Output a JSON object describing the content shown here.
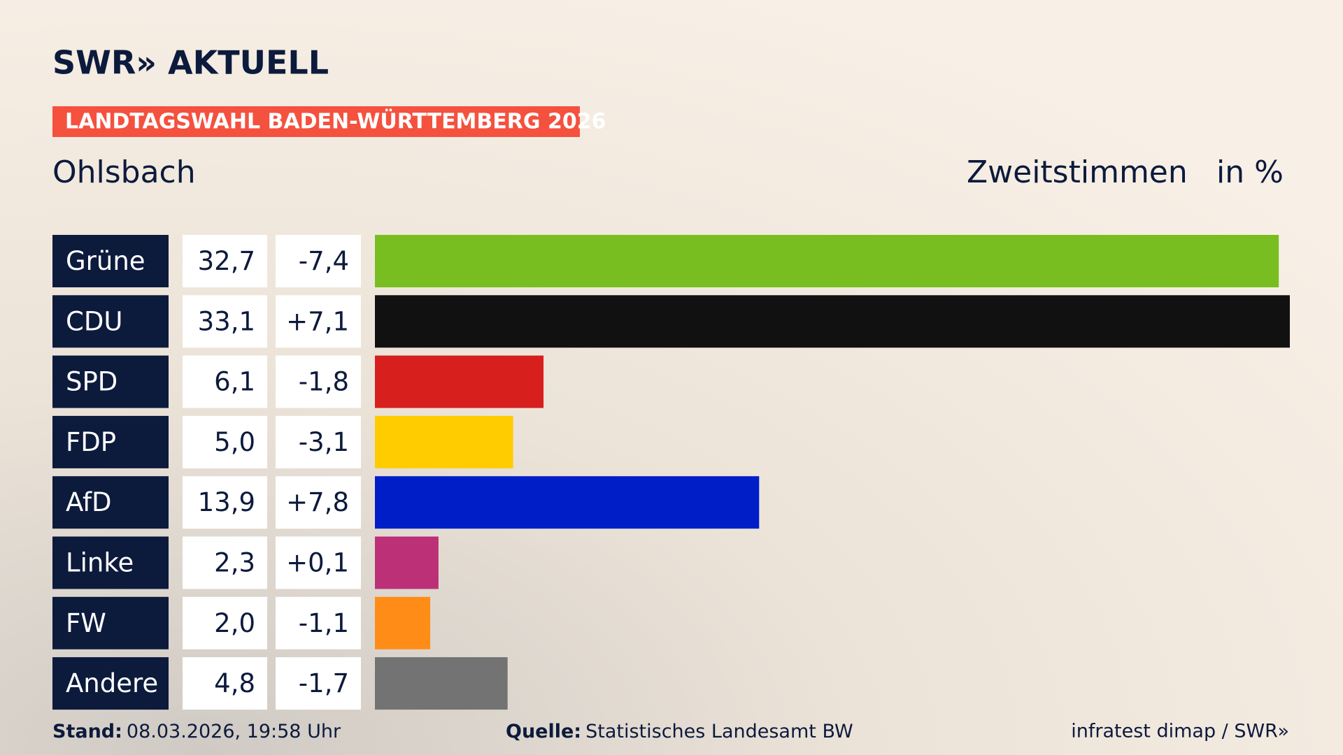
{
  "logo": "SWR» AKTUELL",
  "badge": "LANDTAGSWAHL BADEN-WÜRTTEMBERG 2026",
  "chart_data": {
    "type": "bar",
    "title": "Ohlsbach",
    "subtitle": "Zweitstimmen",
    "unit": "in %",
    "categories": [
      "Grüne",
      "CDU",
      "SPD",
      "FDP",
      "AfD",
      "Linke",
      "FW",
      "Andere"
    ],
    "values": [
      32.7,
      33.1,
      6.1,
      5.0,
      13.9,
      2.3,
      2.0,
      4.8
    ],
    "value_labels": [
      "32,7",
      "33,1",
      "6,1",
      "5,0",
      "13,9",
      "2,3",
      "2,0",
      "4,8"
    ],
    "changes": [
      "-7,4",
      "+7,1",
      "-1,8",
      "-3,1",
      "+7,8",
      "+0,1",
      "-1,1",
      "-1,7"
    ],
    "colors": [
      "#78be20",
      "#111111",
      "#d71f1d",
      "#ffcc00",
      "#001ec8",
      "#bb3077",
      "#ff8c17",
      "#737373"
    ]
  },
  "footer": {
    "stand_label": "Stand:",
    "stand": "08.03.2026, 19:58 Uhr",
    "source_label": "Quelle:",
    "source": "Statistisches Landesamt BW",
    "credit": "infratest dimap / SWR»"
  }
}
